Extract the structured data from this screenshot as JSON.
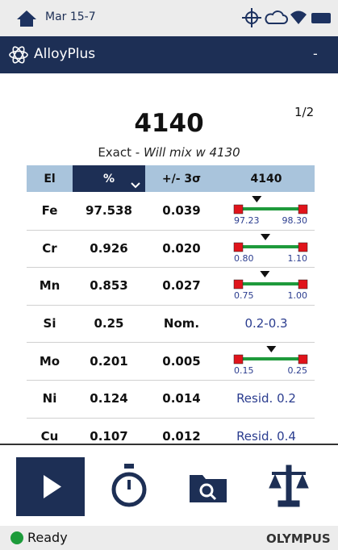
{
  "status_bar": {
    "date": "Mar 15-7"
  },
  "header": {
    "title": "AlloyPlus",
    "menu": "-"
  },
  "result": {
    "grade": "4140",
    "page": "1/2",
    "match": "Exact - ",
    "note": "Will mix w 4130"
  },
  "table": {
    "columns": [
      "El",
      "%",
      "+/- 3σ",
      "4140"
    ],
    "rows": [
      {
        "element": "Fe",
        "percent": "97.538",
        "error": "0.039",
        "min": "97.23",
        "max": "98.30"
      },
      {
        "element": "Cr",
        "percent": "0.926",
        "error": "0.020",
        "min": "0.80",
        "max": "1.10"
      },
      {
        "element": "Mn",
        "percent": "0.853",
        "error": "0.027",
        "min": "0.75",
        "max": "1.00"
      },
      {
        "element": "Si",
        "percent": "0.25",
        "error": "Nom.",
        "spec": "0.2-0.3"
      },
      {
        "element": "Mo",
        "percent": "0.201",
        "error": "0.005",
        "min": "0.15",
        "max": "0.25"
      },
      {
        "element": "Ni",
        "percent": "0.124",
        "error": "0.014",
        "spec": "Resid. 0.2"
      },
      {
        "element": "Cu",
        "percent": "0.107",
        "error": "0.012",
        "spec": "Resid. 0.4"
      }
    ]
  },
  "footer": {
    "status": "Ready",
    "brand": "OLYMPUS"
  }
}
